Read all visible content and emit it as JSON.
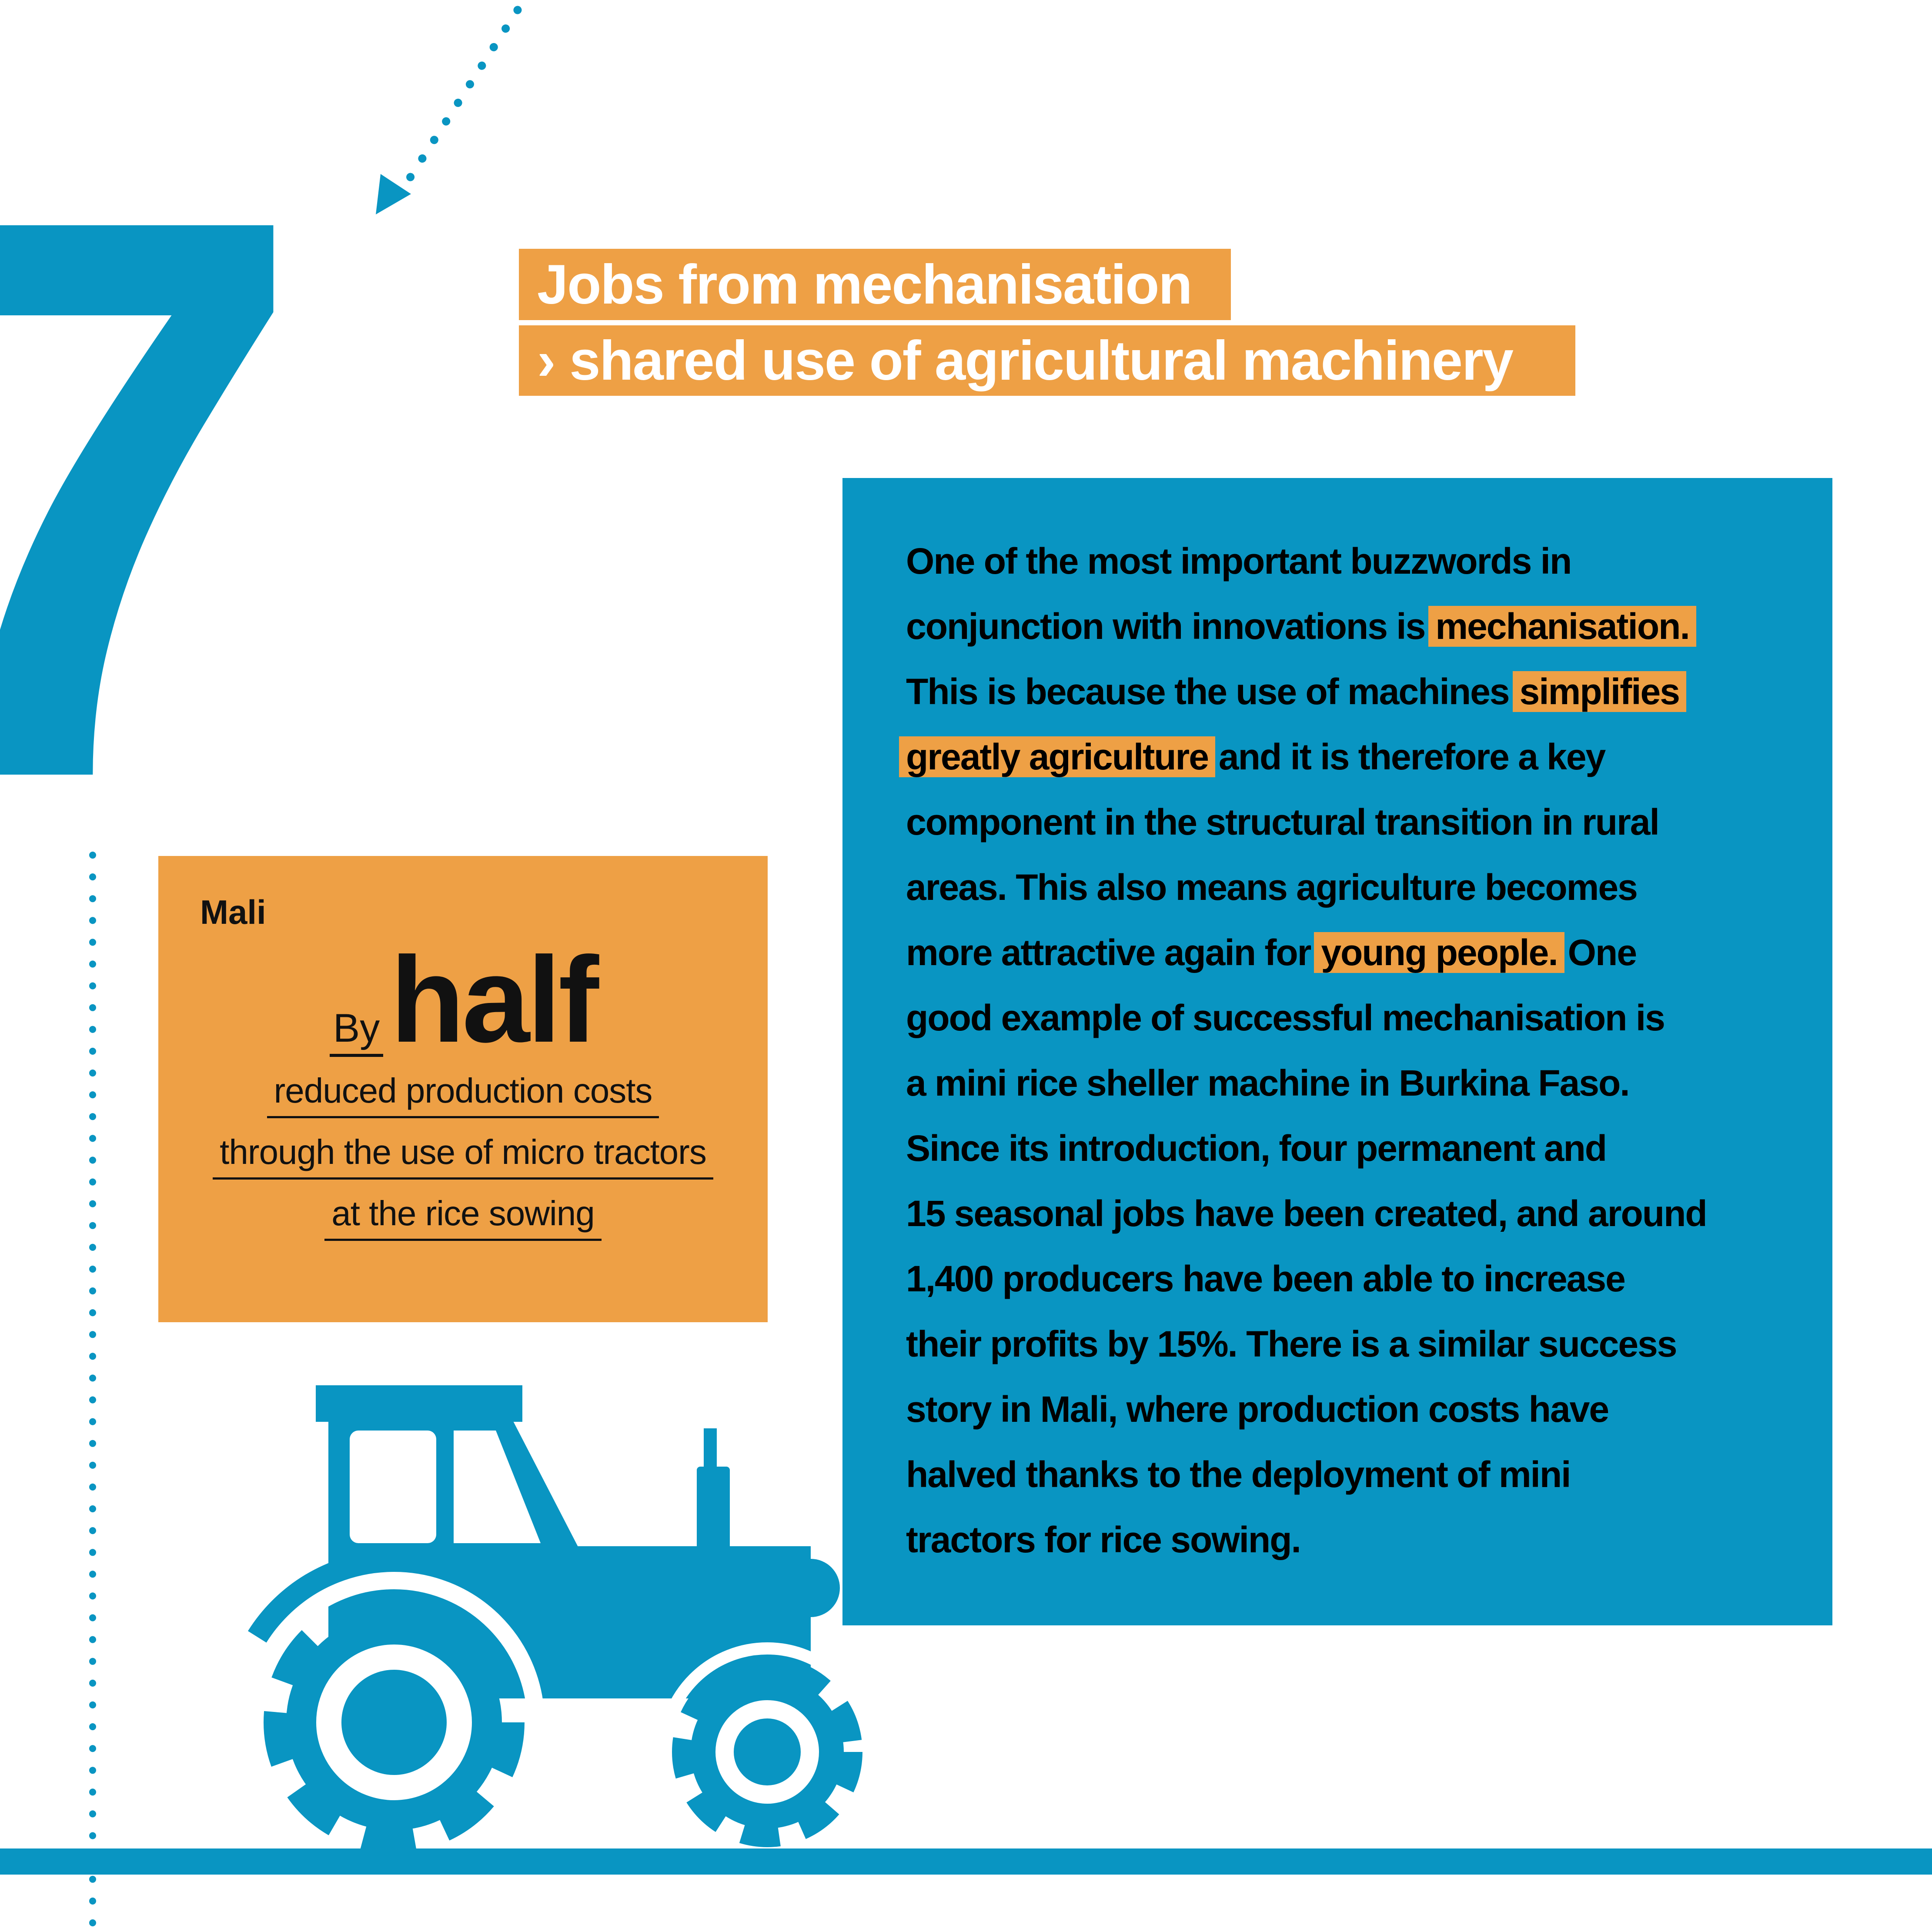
{
  "page": {
    "section_number": "7",
    "colors": {
      "blue": "#0995c2",
      "orange": "#eea045",
      "text": "#000000",
      "title_text": "#ffffff"
    },
    "icons": [
      "dotted-arrow-icon",
      "tractor-icon",
      "dotted-line-icon",
      "ground-bar"
    ]
  },
  "title": {
    "line1": "Jobs from mechanisation",
    "line2": "› shared use of agricultural machinery"
  },
  "stat_card": {
    "country": "Mali",
    "prefix": "By",
    "value": "half",
    "lines": [
      "reduced production costs",
      "through the use of micro tractors",
      "at the rice sowing"
    ]
  },
  "paragraph": {
    "lines": [
      [
        {
          "text": "One of the most important buzzwords in"
        }
      ],
      [
        {
          "text": "conjunction with innovations is"
        },
        {
          "text": "mechanisation.",
          "hl": true
        }
      ],
      [
        {
          "text": "This is because the use of machines"
        },
        {
          "text": "simplifies",
          "hl": true
        }
      ],
      [
        {
          "text": "greatly agriculture",
          "hl": true
        },
        {
          "text": "and it is therefore a key"
        }
      ],
      [
        {
          "text": "component in the structural transition in rural"
        }
      ],
      [
        {
          "text": "areas. This also means agriculture becomes"
        }
      ],
      [
        {
          "text": "more attractive again for"
        },
        {
          "text": "young people.",
          "hl": true
        },
        {
          "text": "One"
        }
      ],
      [
        {
          "text": "good example of successful mechanisation is"
        }
      ],
      [
        {
          "text": "a mini rice sheller machine in Burkina Faso."
        }
      ],
      [
        {
          "text": "Since its introduction, four permanent and"
        }
      ],
      [
        {
          "text": "15 seasonal jobs have been created, and around"
        }
      ],
      [
        {
          "text": "1,400 producers have been able to increase"
        }
      ],
      [
        {
          "text": "their profits by 15%. There is a similar success"
        }
      ],
      [
        {
          "text": "story in Mali, where production costs have"
        }
      ],
      [
        {
          "text": "halved thanks to the deployment of mini"
        }
      ],
      [
        {
          "text": "tractors for rice sowing."
        }
      ]
    ]
  }
}
